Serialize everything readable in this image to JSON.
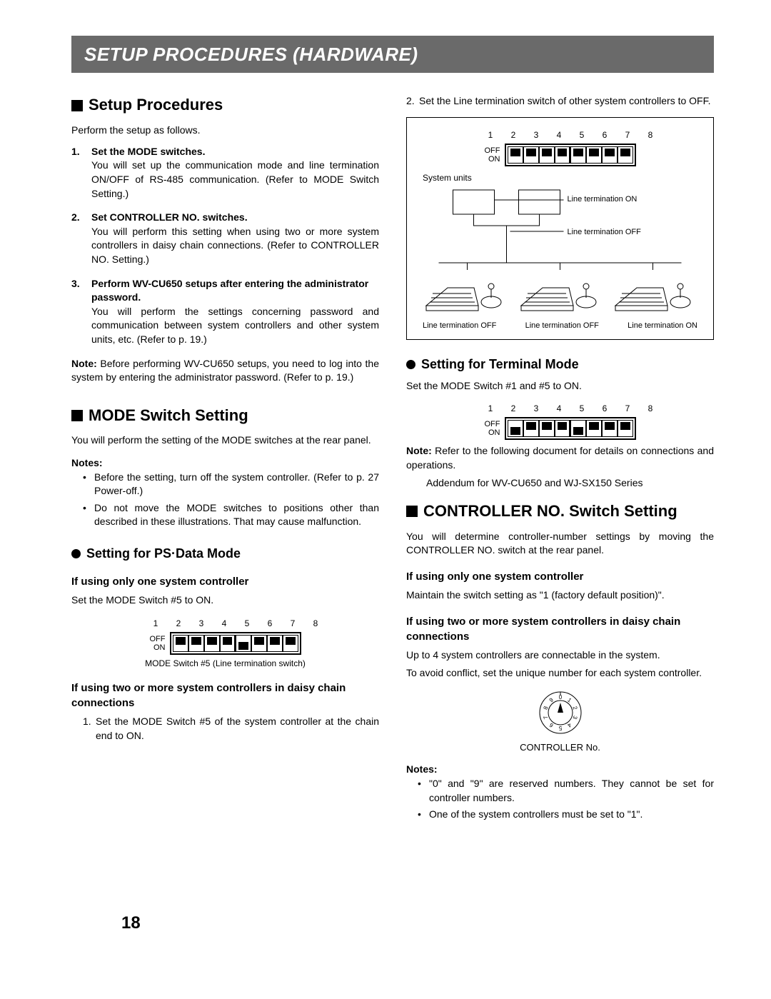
{
  "banner": "SETUP PROCEDURES (HARDWARE)",
  "page_number": "18",
  "left": {
    "h_setup": "Setup Procedures",
    "intro": "Perform the setup as follows.",
    "steps": [
      {
        "title": "Set the MODE switches.",
        "body": "You will set up the communication mode and line termination ON/OFF of RS-485 communication. (Refer to MODE Switch Setting.)"
      },
      {
        "title": "Set CONTROLLER NO. switches.",
        "body": "You will perform this setting when using two or more system controllers in daisy chain connections. (Refer to CONTROLLER NO. Setting.)"
      },
      {
        "title": "Perform WV-CU650 setups after entering the administrator password.",
        "body": "You will perform the settings concerning password and communication between system controllers and other system units, etc. (Refer to p. 19.)"
      }
    ],
    "note1_lead": "Note:",
    "note1": " Before performing WV-CU650 setups, you need to log into the system by entering the administrator password. (Refer to p. 19.)",
    "h_mode": "MODE Switch Setting",
    "mode_intro": "You will perform the setting of the MODE switches at the rear panel.",
    "notes_head": "Notes:",
    "mode_notes": [
      "Before the setting, turn off the system controller. (Refer to p. 27 Power-off.)",
      "Do not move the MODE switches to positions other than described in these illustrations. That may cause malfunction."
    ],
    "h_psdata": "Setting for PS·Data Mode",
    "h_one": "If using only one system controller",
    "one_text": "Set the MODE Switch #5 to ON.",
    "dip1_nums": "1  2  3  4  5  6  7  8",
    "dip1_off": "OFF",
    "dip1_on": "ON",
    "dip1_caption": "MODE Switch #5 (Line termination switch)",
    "dip1_positions": [
      "off",
      "off",
      "off",
      "off",
      "on",
      "off",
      "off",
      "off"
    ],
    "h_two": "If using two or more system controllers in daisy chain connections",
    "two_step1_num": "1.",
    "two_step1": "Set the MODE Switch #5 of the system controller at the chain end to ON."
  },
  "right": {
    "cont_num": "2.",
    "cont_text": "Set the Line termination switch of other system controllers to OFF.",
    "bigfig": {
      "nums": "1  2  3  4  5  6  7  8",
      "off": "OFF",
      "on": "ON",
      "dip_positions": [
        "off",
        "off",
        "off",
        "off",
        "off",
        "off",
        "off",
        "off"
      ],
      "system_units": "System units",
      "line_on": "Line termination ON",
      "line_off": "Line termination OFF",
      "cap1": "Line termination OFF",
      "cap2": "Line termination OFF",
      "cap3": "Line termination ON"
    },
    "h_terminal": "Setting for Terminal Mode",
    "terminal_text": "Set the MODE Switch #1 and #5 to ON.",
    "dip2_nums": "1  2  3  4  5  6  7  8",
    "dip2_off": "OFF",
    "dip2_on": "ON",
    "dip2_positions": [
      "on",
      "off",
      "off",
      "off",
      "on",
      "off",
      "off",
      "off"
    ],
    "term_note_lead": "Note:",
    "term_note": " Refer to the following document for details on connections and operations.",
    "term_note_sub": "Addendum for WV-CU650 and WJ-SX150 Series",
    "h_ctrlno": "CONTROLLER NO. Switch Setting",
    "ctrlno_intro": "You will determine controller-number settings by moving the CONTROLLER NO. switch at the rear panel.",
    "h_ctrl_one": "If using only one system controller",
    "ctrl_one_text": "Maintain the switch setting as \"1 (factory default position)\".",
    "h_ctrl_two": "If using two or more system controllers in daisy chain connections",
    "ctrl_two_p1": "Up to 4 system controllers are connectable in the system.",
    "ctrl_two_p2": "To avoid conflict, set the unique number for each system controller.",
    "rotary_label": "CONTROLLER No.",
    "rotary_digits": [
      "0",
      "1",
      "2",
      "3",
      "4",
      "5",
      "6",
      "7",
      "8",
      "9"
    ],
    "notes_head": "Notes:",
    "ctrl_notes": [
      "\"0\" and \"9\" are reserved numbers. They cannot be set for controller numbers.",
      "One of the system controllers must be set to \"1\"."
    ]
  }
}
